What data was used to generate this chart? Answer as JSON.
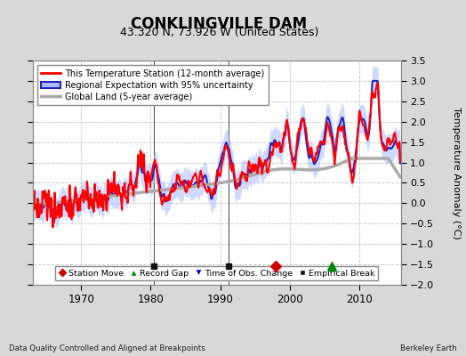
{
  "title": "CONKLINGVILLE DAM",
  "subtitle": "43.320 N, 73.926 W (United States)",
  "ylabel": "Temperature Anomaly (°C)",
  "xlabel_note": "Data Quality Controlled and Aligned at Breakpoints",
  "source_note": "Berkeley Earth",
  "ylim": [
    -2.0,
    3.5
  ],
  "xlim": [
    1963.0,
    2016.0
  ],
  "yticks": [
    -2.0,
    -1.5,
    -1.0,
    -0.5,
    0.0,
    0.5,
    1.0,
    1.5,
    2.0,
    2.5,
    3.0,
    3.5
  ],
  "xticks": [
    1970,
    1980,
    1990,
    2000,
    2010
  ],
  "fig_bg_color": "#d8d8d8",
  "plot_bg_color": "#ffffff",
  "grid_color": "#cccccc",
  "grid_linestyle": "--",
  "empirical_breaks": [
    1980.5,
    1991.2
  ],
  "station_move_x": [
    1998.0
  ],
  "record_gap_x": [
    2006.0
  ],
  "time_obs_change_x": [],
  "marker_y": -1.55,
  "vline_color": "#555555",
  "station_color": "#ff0000",
  "regional_line_color": "#2222bb",
  "regional_band_color": "#aabbff",
  "regional_band_alpha": 0.55,
  "global_color": "#aaaaaa",
  "station_lw": 1.5,
  "regional_lw": 1.5,
  "global_lw": 2.5,
  "seed": 12345
}
